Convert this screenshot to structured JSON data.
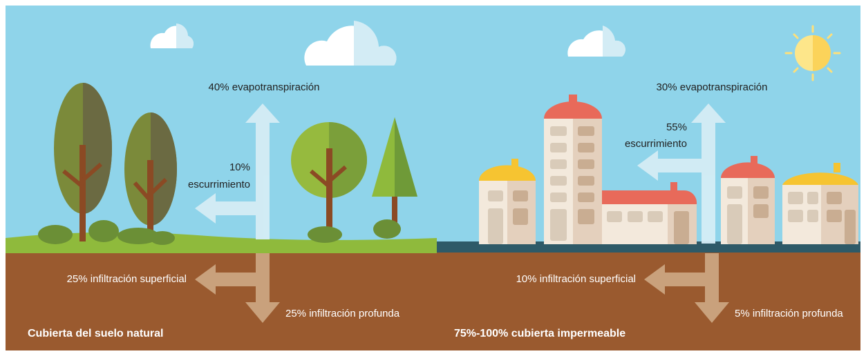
{
  "natural": {
    "evapotranspiration": "40% evapotranspiración",
    "runoff_percent": "10%",
    "runoff_label": "escurrimiento",
    "shallow_infiltration": "25% infiltración superficial",
    "deep_infiltration": "25% infiltración profunda",
    "caption": "Cubierta del suelo natural"
  },
  "urban": {
    "evapotranspiration": "30% evapotranspiración",
    "runoff_percent": "55%",
    "runoff_label": "escurrimiento",
    "shallow_infiltration": "10% infiltración superficial",
    "deep_infiltration": "5% infiltración profunda",
    "caption": "75%-100% cubierta impermeable"
  }
}
